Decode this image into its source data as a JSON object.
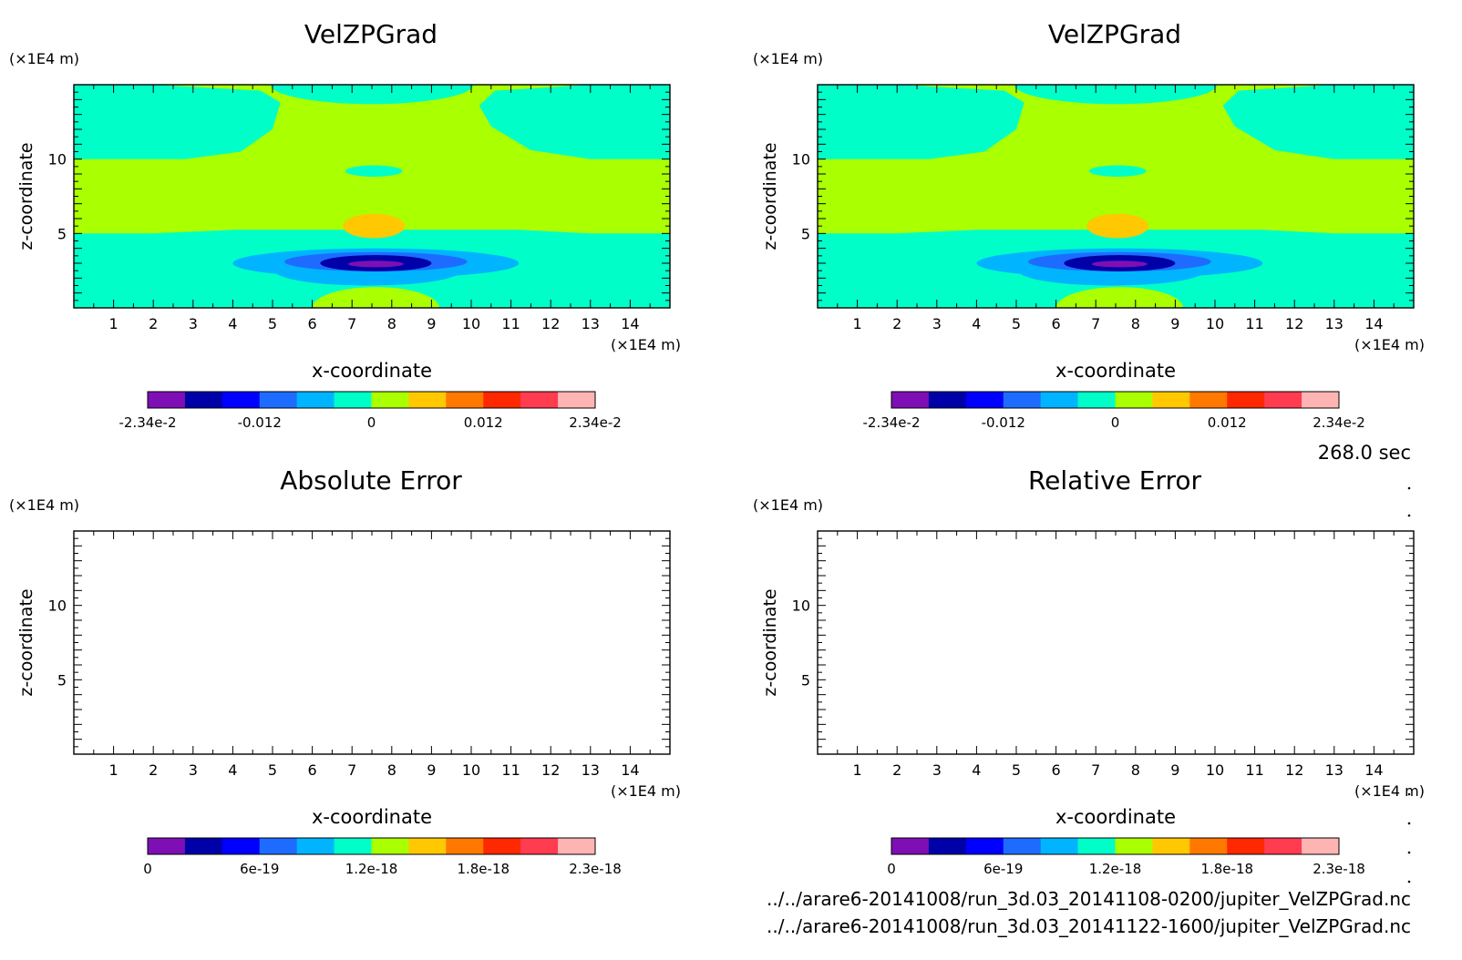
{
  "colors": {
    "palette": [
      "#7e0fb4",
      "#0000a8",
      "#0000ff",
      "#1e6cff",
      "#00b4ff",
      "#00ffc8",
      "#aaff00",
      "#ffc800",
      "#ff7800",
      "#ff2800",
      "#ff3c50",
      "#ffb4b4"
    ],
    "cyan": "#00ffc8",
    "green": "#aaff00",
    "orange": "#ffc800",
    "light_blue": "#00b4ff",
    "mid_blue": "#1e6cff",
    "dark_blue": "#0000a8",
    "purple": "#7e0fb4"
  },
  "footer": {
    "time": "268.0 sec",
    "file1": "../../arare6-20141008/run_3d.03_20141108-0200/jupiter_VelZPGrad.nc",
    "file2": "../../arare6-20141008/run_3d.03_20141122-1600/jupiter_VelZPGrad.nc"
  },
  "chart_data": [
    {
      "type": "heatmap",
      "title": "VelZPGrad",
      "xlabel": "x-coordinate",
      "ylabel": "z-coordinate",
      "x_unit": "(×1E4 m)",
      "z_unit": "(×1E4 m)",
      "xlim": [
        0,
        15
      ],
      "zlim": [
        0,
        15
      ],
      "x_ticks": [
        "1",
        "2",
        "3",
        "4",
        "5",
        "6",
        "7",
        "8",
        "9",
        "10",
        "11",
        "12",
        "13",
        "14"
      ],
      "z_ticks": [
        "5",
        "10"
      ],
      "colorbar_labels": [
        "-2.34e-2",
        "-0.012",
        "0",
        "0.012",
        "2.34e-2"
      ],
      "colorbar_range": [
        -0.0234,
        0.0234
      ],
      "filled": true
    },
    {
      "type": "heatmap",
      "title": "VelZPGrad",
      "xlabel": "x-coordinate",
      "ylabel": "z-coordinate",
      "x_unit": "(×1E4 m)",
      "z_unit": "(×1E4 m)",
      "xlim": [
        0,
        15
      ],
      "zlim": [
        0,
        15
      ],
      "x_ticks": [
        "1",
        "2",
        "3",
        "4",
        "5",
        "6",
        "7",
        "8",
        "9",
        "10",
        "11",
        "12",
        "13",
        "14"
      ],
      "z_ticks": [
        "5",
        "10"
      ],
      "colorbar_labels": [
        "-2.34e-2",
        "-0.012",
        "0",
        "0.012",
        "2.34e-2"
      ],
      "colorbar_range": [
        -0.0234,
        0.0234
      ],
      "filled": true
    },
    {
      "type": "heatmap",
      "title": "Absolute Error",
      "xlabel": "x-coordinate",
      "ylabel": "z-coordinate",
      "x_unit": "(×1E4 m)",
      "z_unit": "(×1E4 m)",
      "xlim": [
        0,
        15
      ],
      "zlim": [
        0,
        15
      ],
      "x_ticks": [
        "1",
        "2",
        "3",
        "4",
        "5",
        "6",
        "7",
        "8",
        "9",
        "10",
        "11",
        "12",
        "13",
        "14"
      ],
      "z_ticks": [
        "5",
        "10"
      ],
      "colorbar_labels": [
        "0",
        "6e-19",
        "1.2e-18",
        "1.8e-18",
        "2.3e-18"
      ],
      "colorbar_range": [
        0,
        2.3e-18
      ],
      "filled": false
    },
    {
      "type": "heatmap",
      "title": "Relative Error",
      "xlabel": "x-coordinate",
      "ylabel": "z-coordinate",
      "x_unit": "(×1E4 m)",
      "z_unit": "(×1E4 m)",
      "xlim": [
        0,
        15
      ],
      "zlim": [
        0,
        15
      ],
      "x_ticks": [
        "1",
        "2",
        "3",
        "4",
        "5",
        "6",
        "7",
        "8",
        "9",
        "10",
        "11",
        "12",
        "13",
        "14"
      ],
      "z_ticks": [
        "5",
        "10"
      ],
      "colorbar_labels": [
        "0",
        "6e-19",
        "1.2e-18",
        "1.8e-18",
        "2.3e-18"
      ],
      "colorbar_range": [
        0,
        2.3e-18
      ],
      "filled": false
    }
  ]
}
